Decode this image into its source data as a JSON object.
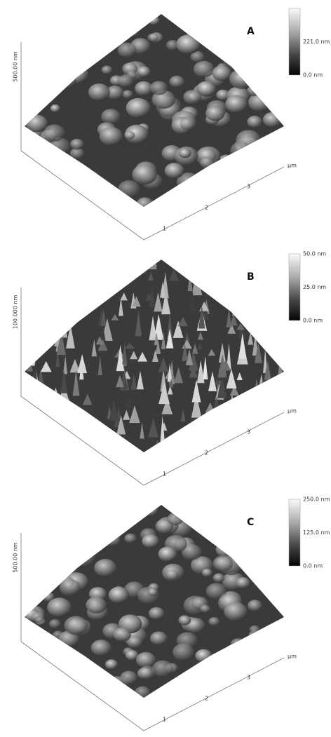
{
  "panels": [
    {
      "label": "A",
      "z_axis_label": "500.00 nm",
      "colorbar_labels": [
        "221.0 nm",
        "0.0 nm"
      ],
      "axis_unit": "μm",
      "axis_ticks": [
        "1",
        "2",
        "3"
      ]
    },
    {
      "label": "B",
      "z_axis_label": "100.000 nm",
      "colorbar_labels": [
        "50.0 nm",
        "25.0 nm",
        "0.0 nm"
      ],
      "axis_unit": "μm",
      "axis_ticks": [
        "1",
        "2",
        "3"
      ]
    },
    {
      "label": "C",
      "z_axis_label": "500.00 nm",
      "colorbar_labels": [
        "250.0 nm",
        "125.0 nm",
        "0.0 nm"
      ],
      "axis_unit": "μm",
      "axis_ticks": [
        "1",
        "2",
        "3"
      ]
    }
  ]
}
